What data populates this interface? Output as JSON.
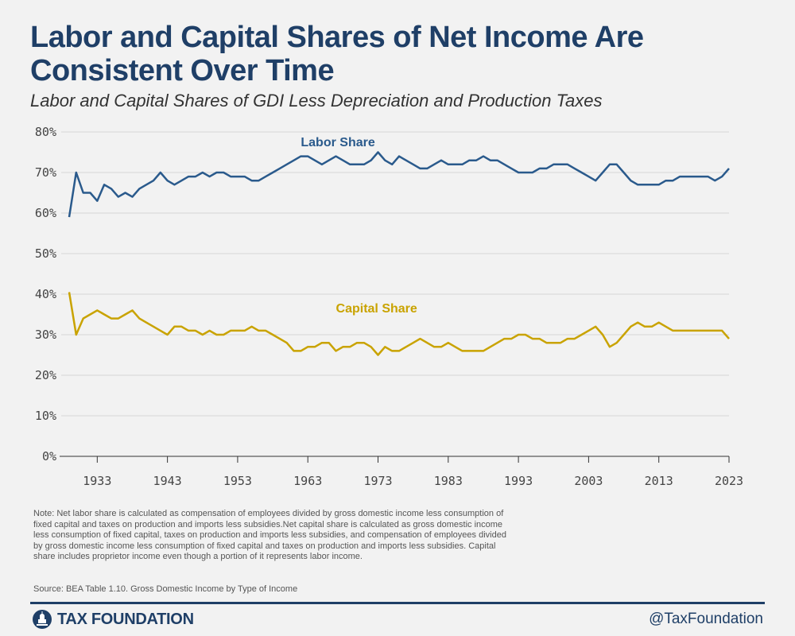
{
  "title": "Labor and Capital Shares of Net Income Are Consistent Over Time",
  "subtitle": "Labor and Capital Shares of GDI Less Depreciation and Production Taxes",
  "note": "Note: Net labor share is calculated as compensation of employees divided by gross domestic income less consumption of fixed capital and taxes on production and imports less subsidies.Net capital share is calculated as gross domestic income less consumption of fixed capital, taxes on production and imports less subsidies, and compensation of employees divided by gross domestic income less consumption of fixed capital and taxes on production and imports less subsidies. Capital share includes proprietor income even though a portion of it represents labor income.",
  "source": "Source: BEA Table 1.10. Gross Domestic Income by Type of Income",
  "brand": "TAX FOUNDATION",
  "handle": "@TaxFoundation",
  "colors": {
    "labor": "#2a5a8c",
    "capital": "#c9a300",
    "title": "#1f3f67",
    "grid": "#d6d6d6",
    "background": "#f2f2f2"
  },
  "chart_data": {
    "type": "line",
    "title": "",
    "xlabel": "",
    "ylabel": "",
    "xlim": [
      1929,
      2023
    ],
    "ylim": [
      0,
      80
    ],
    "y_ticks": [
      "0%",
      "10%",
      "20%",
      "30%",
      "40%",
      "50%",
      "60%",
      "70%",
      "80%"
    ],
    "x_ticks": [
      "1933",
      "1943",
      "1953",
      "1963",
      "1973",
      "1983",
      "1993",
      "2003",
      "2013",
      "2023"
    ],
    "grid": true,
    "legend": "inline labels",
    "x": [
      1929,
      1930,
      1931,
      1932,
      1933,
      1934,
      1935,
      1936,
      1937,
      1938,
      1939,
      1940,
      1941,
      1942,
      1943,
      1944,
      1945,
      1946,
      1947,
      1948,
      1949,
      1950,
      1951,
      1952,
      1953,
      1954,
      1955,
      1956,
      1957,
      1958,
      1959,
      1960,
      1961,
      1962,
      1963,
      1964,
      1965,
      1966,
      1967,
      1968,
      1969,
      1970,
      1971,
      1972,
      1973,
      1974,
      1975,
      1976,
      1977,
      1978,
      1979,
      1980,
      1981,
      1982,
      1983,
      1984,
      1985,
      1986,
      1987,
      1988,
      1989,
      1990,
      1991,
      1992,
      1993,
      1994,
      1995,
      1996,
      1997,
      1998,
      1999,
      2000,
      2001,
      2002,
      2003,
      2004,
      2005,
      2006,
      2007,
      2008,
      2009,
      2010,
      2011,
      2012,
      2013,
      2014,
      2015,
      2016,
      2017,
      2018,
      2019,
      2020,
      2021,
      2022,
      2023
    ],
    "series": [
      {
        "name": "Labor Share",
        "color": "#2a5a8c",
        "values": [
          59,
          70,
          65,
          65,
          63,
          67,
          66,
          64,
          65,
          64,
          66,
          67,
          68,
          70,
          68,
          67,
          68,
          69,
          69,
          70,
          69,
          70,
          70,
          69,
          69,
          69,
          68,
          68,
          69,
          70,
          71,
          72,
          73,
          74,
          74,
          73,
          72,
          73,
          74,
          73,
          72,
          72,
          72,
          73,
          75,
          73,
          72,
          74,
          73,
          72,
          71,
          71,
          72,
          73,
          72,
          72,
          72,
          73,
          73,
          74,
          73,
          73,
          72,
          71,
          70,
          70,
          70,
          71,
          71,
          72,
          72,
          72,
          71,
          70,
          69,
          68,
          70,
          72,
          72,
          70,
          68,
          67,
          67,
          67,
          67,
          68,
          68,
          69,
          69,
          69,
          69,
          69,
          68,
          69,
          71
        ]
      },
      {
        "name": "Capital Share",
        "color": "#c9a300",
        "values": [
          40.5,
          30,
          34,
          35,
          36,
          35,
          34,
          34,
          35,
          36,
          34,
          33,
          32,
          31,
          30,
          32,
          32,
          31,
          31,
          30,
          31,
          30,
          30,
          31,
          31,
          31,
          32,
          31,
          31,
          30,
          29,
          28,
          26,
          26,
          27,
          27,
          28,
          28,
          26,
          27,
          27,
          28,
          28,
          27,
          25,
          27,
          26,
          26,
          27,
          28,
          29,
          28,
          27,
          27,
          28,
          27,
          26,
          26,
          26,
          26,
          27,
          28,
          29,
          29,
          30,
          30,
          29,
          29,
          28,
          28,
          28,
          29,
          29,
          30,
          31,
          32,
          30,
          27,
          28,
          30,
          32,
          33,
          32,
          32,
          33,
          32,
          31,
          31,
          31,
          31,
          31,
          31,
          31,
          31,
          29
        ]
      }
    ]
  }
}
